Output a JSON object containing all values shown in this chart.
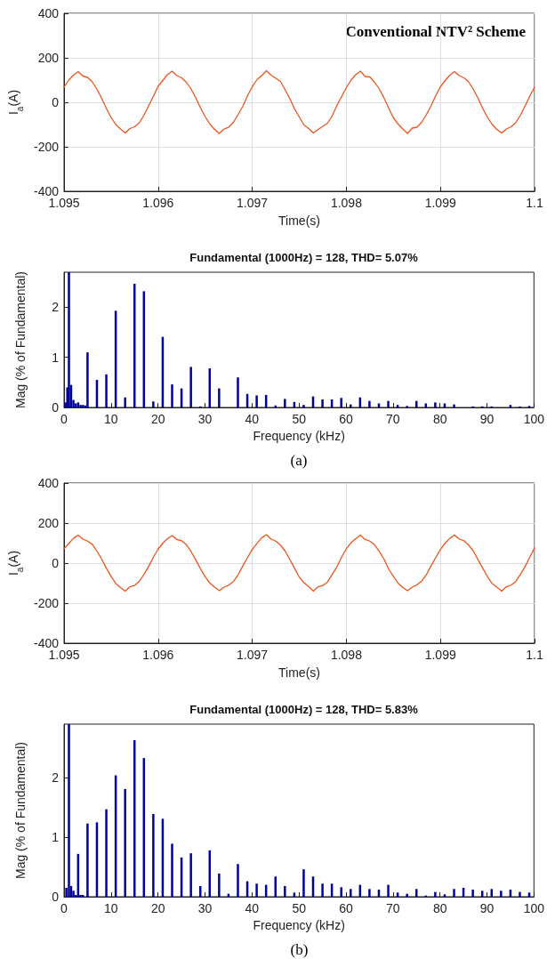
{
  "chart_data": [
    {
      "type": "line",
      "xlabel": "Time(s)",
      "ylabel": "I$_{a}$(A)",
      "annotations": [
        "Conventional NTV² Scheme"
      ],
      "xlim": [
        1.095,
        1.1
      ],
      "ylim": [
        -400,
        400
      ],
      "xticks": [
        1.095,
        1.096,
        1.097,
        1.098,
        1.099,
        1.1
      ],
      "yticks": [
        -400,
        -200,
        0,
        200,
        400
      ],
      "grid": true,
      "marker": "none",
      "series": [
        {
          "color": "#e8561e",
          "x": [
            1.095,
            1.09505,
            1.0951,
            1.09515,
            1.0952,
            1.09525,
            1.0953,
            1.09535,
            1.0954,
            1.09545,
            1.0955,
            1.09555,
            1.0956,
            1.09565,
            1.0957,
            1.09575,
            1.0958,
            1.09585,
            1.0959,
            1.09595,
            1.096,
            1.09605,
            1.0961,
            1.09615,
            1.0962,
            1.09625,
            1.0963,
            1.09635,
            1.0964,
            1.09645,
            1.0965,
            1.09655,
            1.0966,
            1.09665,
            1.0967,
            1.09675,
            1.0968,
            1.09685,
            1.0969,
            1.09695,
            1.097,
            1.09705,
            1.0971,
            1.09715,
            1.0972,
            1.09725,
            1.0973,
            1.09735,
            1.0974,
            1.09745,
            1.0975,
            1.09755,
            1.0976,
            1.09765,
            1.0977,
            1.09775,
            1.0978,
            1.09785,
            1.0979,
            1.09795,
            1.098,
            1.09805,
            1.0981,
            1.09815,
            1.0982,
            1.09825,
            1.0983,
            1.09835,
            1.0984,
            1.09845,
            1.0985,
            1.09855,
            1.0986,
            1.09865,
            1.0987,
            1.09875,
            1.0988,
            1.09885,
            1.0989,
            1.09895,
            1.099,
            1.09905,
            1.0991,
            1.09915,
            1.0992,
            1.09925,
            1.0993,
            1.09935,
            1.0994,
            1.09945,
            1.0995,
            1.09955,
            1.0996,
            1.09965,
            1.0997,
            1.09975,
            1.0998,
            1.09985,
            1.0999,
            1.09995,
            1.1
          ],
          "values": [
            68,
            100,
            122,
            138,
            118,
            112,
            92,
            58,
            18,
            -28,
            -68,
            -100,
            -120,
            -138,
            -118,
            -110,
            -92,
            -58,
            -15,
            28,
            72,
            98,
            125,
            140,
            120,
            110,
            90,
            60,
            20,
            -25,
            -65,
            -98,
            -122,
            -140,
            -120,
            -112,
            -90,
            -55,
            -18,
            30,
            70,
            102,
            120,
            142,
            122,
            108,
            94,
            56,
            16,
            -30,
            -66,
            -102,
            -118,
            -138,
            -122,
            -108,
            -94,
            -60,
            -14,
            26,
            66,
            100,
            124,
            140,
            116,
            114,
            90,
            60,
            20,
            -26,
            -70,
            -98,
            -120,
            -140,
            -116,
            -112,
            -90,
            -56,
            -16,
            30,
            70,
            98,
            122,
            138,
            120,
            110,
            92,
            58,
            18,
            -28,
            -68,
            -100,
            -122,
            -138,
            -120,
            -110,
            -92,
            -58,
            -16,
            28,
            68
          ]
        }
      ]
    },
    {
      "type": "bar",
      "title": "Fundamental (1000Hz) = 128, THD= 5.07%",
      "xlabel": "Frequency (kHz)",
      "ylabel": "Mag (% of Fundamental)",
      "annotations": [
        "(a)"
      ],
      "xlim": [
        0,
        100
      ],
      "ylim": [
        0,
        2.7
      ],
      "xticks": [
        0,
        10,
        20,
        30,
        40,
        50,
        60,
        70,
        80,
        90,
        100
      ],
      "yticks": [
        0,
        1,
        2
      ],
      "color": "#00009c",
      "ref_lines": [
        {
          "axis": "x",
          "value": 1,
          "color": "#00009c"
        }
      ],
      "x": [
        0.3,
        0.7,
        1.5,
        2,
        2.5,
        3,
        3.5,
        4,
        4.5,
        5,
        7,
        9,
        11,
        13,
        15,
        17,
        19,
        21,
        23,
        25,
        27,
        29,
        31,
        33,
        37,
        39,
        41,
        43,
        45,
        47,
        49,
        51,
        53,
        55,
        57,
        59,
        61,
        63,
        65,
        67,
        69,
        71,
        73,
        75,
        77,
        79,
        81,
        83,
        87,
        89,
        91,
        95,
        97,
        99
      ],
      "values": [
        0.1,
        0.4,
        0.45,
        0.15,
        0.08,
        0.1,
        0.05,
        0.05,
        0.04,
        1.1,
        0.55,
        0.66,
        1.93,
        0.2,
        2.47,
        2.32,
        0.12,
        1.41,
        0.46,
        0.38,
        0.81,
        0.02,
        0.78,
        0.38,
        0.6,
        0.27,
        0.24,
        0.25,
        0.04,
        0.17,
        0.11,
        0.05,
        0.22,
        0.16,
        0.16,
        0.19,
        0.06,
        0.2,
        0.13,
        0.08,
        0.13,
        0.05,
        0.03,
        0.13,
        0.08,
        0.1,
        0.08,
        0.06,
        0.02,
        0.02,
        0.02,
        0.05,
        0.02,
        0.03
      ]
    },
    {
      "type": "line",
      "xlabel": "Time(s)",
      "ylabel": "I$_{a}$(A)",
      "xlim": [
        1.095,
        1.1
      ],
      "ylim": [
        -400,
        400
      ],
      "xticks": [
        1.095,
        1.096,
        1.097,
        1.098,
        1.099,
        1.1
      ],
      "yticks": [
        -400,
        -200,
        0,
        200,
        400
      ],
      "grid": true,
      "marker": "none",
      "series": [
        {
          "color": "#e8561e",
          "x": [
            1.095,
            1.09505,
            1.0951,
            1.09515,
            1.0952,
            1.09525,
            1.0953,
            1.09535,
            1.0954,
            1.09545,
            1.0955,
            1.09555,
            1.0956,
            1.09565,
            1.0957,
            1.09575,
            1.0958,
            1.09585,
            1.0959,
            1.09595,
            1.096,
            1.09605,
            1.0961,
            1.09615,
            1.0962,
            1.09625,
            1.0963,
            1.09635,
            1.0964,
            1.09645,
            1.0965,
            1.09655,
            1.0966,
            1.09665,
            1.0967,
            1.09675,
            1.0968,
            1.09685,
            1.0969,
            1.09695,
            1.097,
            1.09705,
            1.0971,
            1.09715,
            1.0972,
            1.09725,
            1.0973,
            1.09735,
            1.0974,
            1.09745,
            1.0975,
            1.09755,
            1.0976,
            1.09765,
            1.0977,
            1.09775,
            1.0978,
            1.09785,
            1.0979,
            1.09795,
            1.098,
            1.09805,
            1.0981,
            1.09815,
            1.0982,
            1.09825,
            1.0983,
            1.09835,
            1.0984,
            1.09845,
            1.0985,
            1.09855,
            1.0986,
            1.09865,
            1.0987,
            1.09875,
            1.0988,
            1.09885,
            1.0989,
            1.09895,
            1.099,
            1.09905,
            1.0991,
            1.09915,
            1.0992,
            1.09925,
            1.0993,
            1.09935,
            1.0994,
            1.09945,
            1.0995,
            1.09955,
            1.0996,
            1.09965,
            1.0997,
            1.09975,
            1.0998,
            1.09985,
            1.0999,
            1.09995,
            1.1
          ],
          "values": [
            72,
            98,
            124,
            140,
            120,
            110,
            94,
            60,
            20,
            -26,
            -66,
            -102,
            -122,
            -140,
            -118,
            -112,
            -90,
            -56,
            -16,
            30,
            70,
            100,
            122,
            138,
            118,
            112,
            92,
            58,
            16,
            -28,
            -68,
            -100,
            -120,
            -138,
            -120,
            -110,
            -92,
            -58,
            -14,
            28,
            68,
            98,
            126,
            142,
            120,
            110,
            90,
            60,
            18,
            -26,
            -70,
            -98,
            -118,
            -140,
            -118,
            -112,
            -94,
            -56,
            -18,
            30,
            72,
            102,
            122,
            140,
            118,
            110,
            92,
            58,
            20,
            -30,
            -66,
            -100,
            -122,
            -138,
            -120,
            -108,
            -90,
            -58,
            -14,
            28,
            68,
            100,
            124,
            140,
            120,
            112,
            90,
            60,
            16,
            -26,
            -68,
            -102,
            -120,
            -140,
            -118,
            -110,
            -92,
            -56,
            -16,
            30,
            76
          ]
        }
      ]
    },
    {
      "type": "bar",
      "title": "Fundamental (1000Hz) = 128, THD= 5.83%",
      "xlabel": "Frequency (kHz)",
      "ylabel": "Mag (% of Fundamental)",
      "annotations": [
        "(b)"
      ],
      "xlim": [
        0,
        100
      ],
      "ylim": [
        0,
        2.9
      ],
      "xticks": [
        0,
        10,
        20,
        30,
        40,
        50,
        60,
        70,
        80,
        90,
        100
      ],
      "yticks": [
        0,
        1,
        2
      ],
      "color": "#00009c",
      "ref_lines": [
        {
          "axis": "x",
          "value": 1,
          "color": "#00009c"
        }
      ],
      "x": [
        0.5,
        1.5,
        2,
        2.5,
        3,
        3.5,
        4,
        5,
        7,
        9,
        11,
        13,
        15,
        17,
        19,
        21,
        23,
        25,
        27,
        29,
        31,
        33,
        35,
        37,
        39,
        41,
        43,
        45,
        47,
        49,
        51,
        53,
        55,
        57,
        59,
        61,
        63,
        65,
        67,
        69,
        71,
        73,
        75,
        77,
        79,
        81,
        83,
        85,
        87,
        89,
        91,
        93,
        95,
        97,
        99
      ],
      "values": [
        0.15,
        0.18,
        0.1,
        0.03,
        0.72,
        0.03,
        0.03,
        1.23,
        1.25,
        1.47,
        2.04,
        1.81,
        2.63,
        2.33,
        1.39,
        1.31,
        0.89,
        0.66,
        0.73,
        0.18,
        0.78,
        0.39,
        0.05,
        0.55,
        0.26,
        0.22,
        0.2,
        0.34,
        0.18,
        0.07,
        0.46,
        0.34,
        0.22,
        0.22,
        0.16,
        0.13,
        0.2,
        0.13,
        0.12,
        0.2,
        0.07,
        0.05,
        0.13,
        0.02,
        0.08,
        0.04,
        0.13,
        0.15,
        0.12,
        0.1,
        0.13,
        0.1,
        0.12,
        0.08,
        0.07
      ]
    }
  ]
}
